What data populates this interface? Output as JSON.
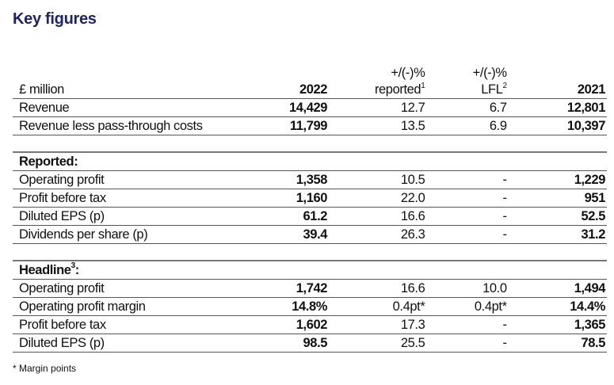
{
  "title": "Key figures",
  "header": {
    "label": "£ million",
    "col_2022": "2022",
    "col_reported": "+/(-)%",
    "col_reported_sub": "reported",
    "col_reported_sup": "1",
    "col_lfl": "+/(-)%",
    "col_lfl_sub": "LFL",
    "col_lfl_sup": "2",
    "col_2021": "2021"
  },
  "top_rows": [
    {
      "label": "Revenue",
      "y2022": "14,429",
      "reported": "12.7",
      "lfl": "6.7",
      "y2021": "12,801"
    },
    {
      "label": "Revenue less pass-through costs",
      "y2022": "11,799",
      "reported": "13.5",
      "lfl": "6.9",
      "y2021": "10,397"
    }
  ],
  "reported": {
    "heading": "Reported:",
    "rows": [
      {
        "label": "Operating profit",
        "y2022": "1,358",
        "reported": "10.5",
        "lfl": "-",
        "y2021": "1,229"
      },
      {
        "label": "Profit before tax",
        "y2022": "1,160",
        "reported": "22.0",
        "lfl": "-",
        "y2021": "951"
      },
      {
        "label": "Diluted EPS (p)",
        "y2022": "61.2",
        "reported": "16.6",
        "lfl": "-",
        "y2021": "52.5"
      },
      {
        "label": "Dividends per share (p)",
        "y2022": "39.4",
        "reported": "26.3",
        "lfl": "-",
        "y2021": "31.2"
      }
    ]
  },
  "headline": {
    "heading": "Headline",
    "heading_sup": "3",
    "heading_suffix": ":",
    "rows": [
      {
        "label": "Operating profit",
        "y2022": "1,742",
        "reported": "16.6",
        "lfl": "10.0",
        "y2021": "1,494"
      },
      {
        "label": "Operating profit margin",
        "y2022": "14.8%",
        "reported": "0.4pt*",
        "lfl": "0.4pt*",
        "y2021": "14.4%"
      },
      {
        "label": "Profit before tax",
        "y2022": "1,602",
        "reported": "17.3",
        "lfl": "-",
        "y2021": "1,365"
      },
      {
        "label": "Diluted EPS (p)",
        "y2022": "98.5",
        "reported": "25.5",
        "lfl": "-",
        "y2021": "78.5"
      }
    ]
  },
  "footnote": "* Margin points"
}
